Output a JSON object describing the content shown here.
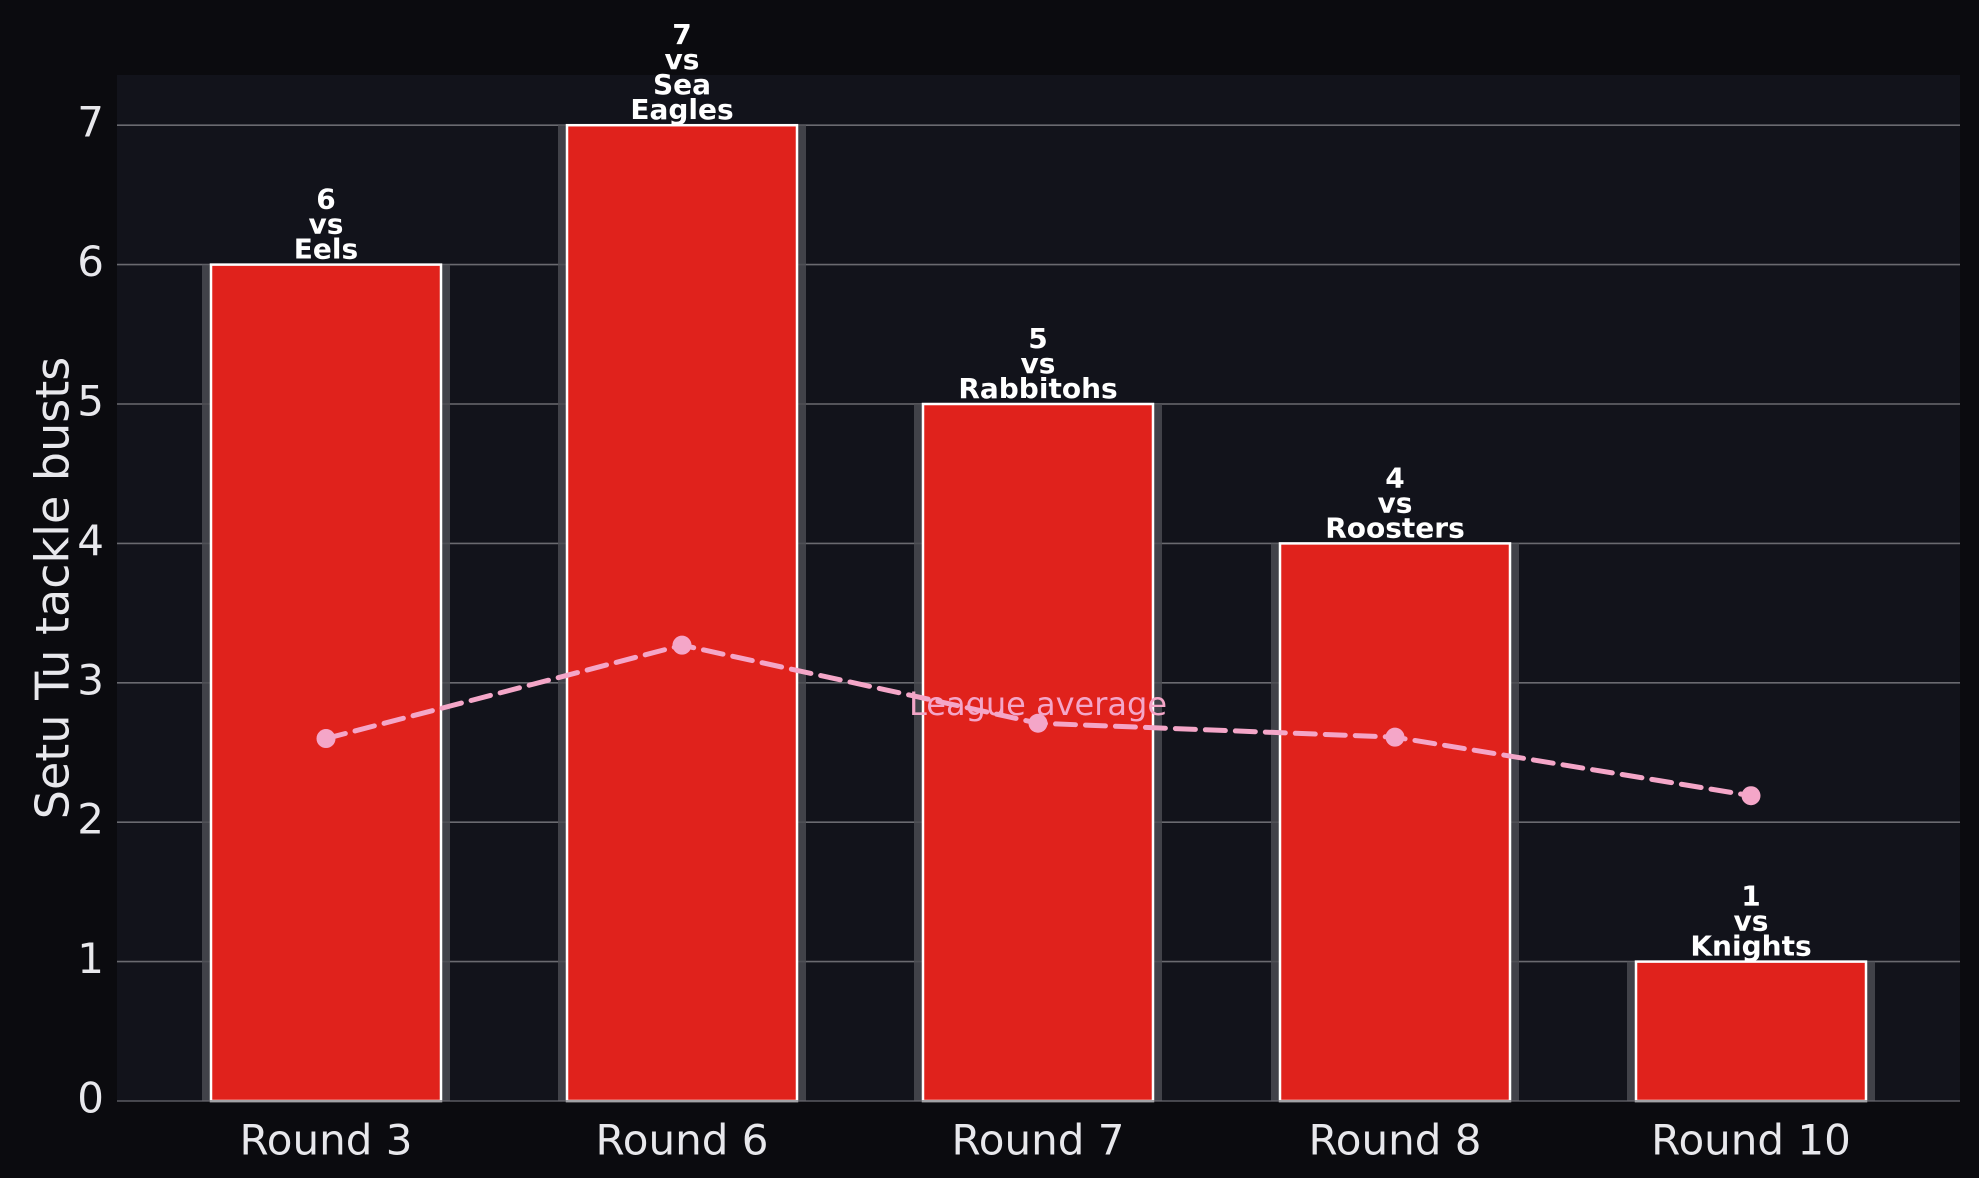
{
  "chart_data": {
    "type": "bar",
    "title": "",
    "xlabel": "",
    "ylabel": "Setu Tu tackle busts",
    "ylim": [
      0,
      7.35
    ],
    "yticks": [
      0,
      1,
      2,
      3,
      4,
      5,
      6,
      7
    ],
    "grid": "horizontal",
    "categories": [
      "Round 3",
      "Round 6",
      "Round 7",
      "Round 8",
      "Round 10"
    ],
    "series": [
      {
        "values": [
          6,
          7,
          5,
          4,
          1
        ],
        "color": "#e0221c",
        "data_labels": [
          [
            "6",
            "vs",
            "Eels"
          ],
          [
            "7",
            "vs",
            "Sea",
            "Eagles"
          ],
          [
            "5",
            "vs",
            "Rabbitohs"
          ],
          [
            "4",
            "vs",
            "Roosters"
          ],
          [
            "1",
            "vs",
            "Knights"
          ]
        ]
      },
      {
        "type": "line",
        "style": "dashed",
        "color": "#f4a6c8",
        "values": [
          2.6,
          3.27,
          2.71,
          2.61,
          2.19
        ],
        "annotation": "League average"
      }
    ],
    "colors": {
      "background": "#0b0b0f",
      "plot_background": "#12131b",
      "bar": "#e0221c",
      "bar_edge": "#ffffff",
      "line": "#f4a6c8",
      "text": "#e8e8ec",
      "grid": "#6a6a70"
    }
  }
}
